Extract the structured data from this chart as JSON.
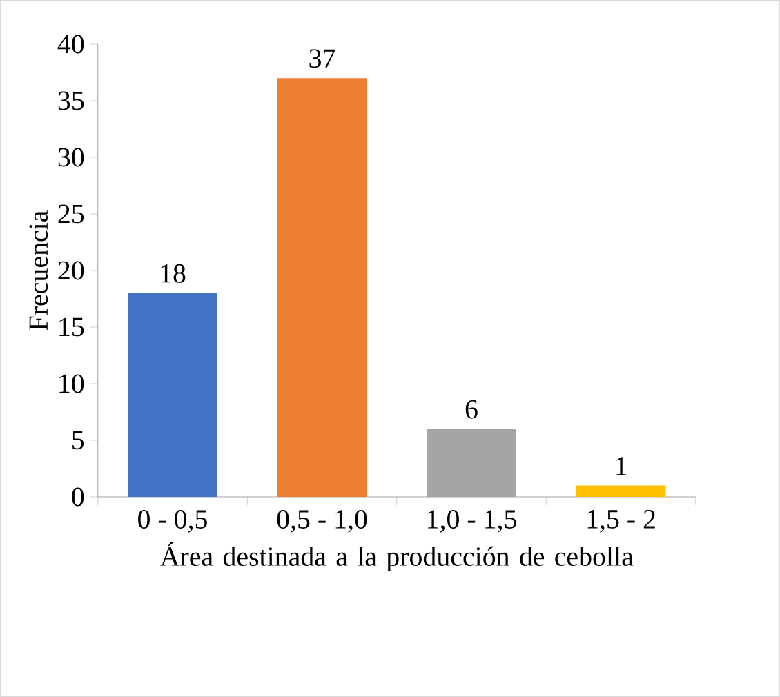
{
  "chart_data": {
    "type": "bar",
    "xlabel": "Área destinada a la producción de cebolla",
    "ylabel": "Frecuencia",
    "categories": [
      "0 - 0,5",
      "0,5 - 1,0",
      "1,0 - 1,5",
      "1,5 - 2"
    ],
    "values": [
      18,
      37,
      6,
      1
    ],
    "colors": [
      "#4472c4",
      "#ed7d31",
      "#a5a5a5",
      "#ffc000"
    ],
    "ylim": [
      0,
      40
    ],
    "yticks": [
      0,
      5,
      10,
      15,
      20,
      25,
      30,
      35,
      40
    ],
    "data_labels": true
  }
}
